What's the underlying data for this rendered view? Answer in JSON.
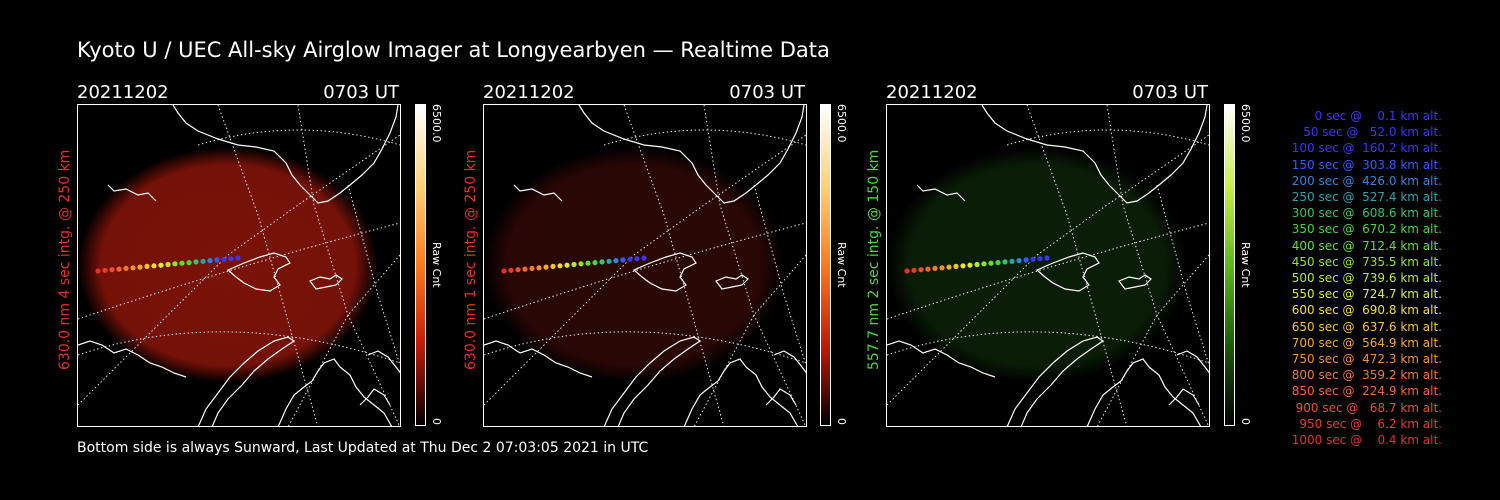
{
  "title": "Kyoto U / UEC All-sky Airglow Imager at Longyearbyen — Realtime Data",
  "footer": "Bottom side is always Sunward, Last Updated at Thu Dec  2 07:03:05 2021 in UTC",
  "panels": [
    {
      "date": "20211202",
      "time": "0703 UT",
      "label": "630.0 nm 4 sec intg. @ 250 km",
      "label_color": "#e8301c",
      "cbar_max": "6500.0",
      "cbar_min": "0",
      "cbar_unit": "Raw Cnt",
      "colormap": "red",
      "glow": "#7a1208"
    },
    {
      "date": "20211202",
      "time": "0703 UT",
      "label": "630.0 nm 1 sec intg. @ 250 km",
      "label_color": "#e8301c",
      "cbar_max": "6500.0",
      "cbar_min": "0",
      "cbar_unit": "Raw Cnt",
      "colormap": "red",
      "glow": "#2a0705"
    },
    {
      "date": "20211202",
      "time": "0703 UT",
      "label": "557.7 nm 2 sec intg. @ 150 km",
      "label_color": "#4fd83a",
      "cbar_max": "6500.0",
      "cbar_min": "0",
      "cbar_unit": "Raw Cnt",
      "colormap": "green",
      "glow": "#0a1e07"
    }
  ],
  "colors": {
    "red_colormap": [
      "#ffffff",
      "#ffd27a",
      "#ff7a1c",
      "#c21a08",
      "#000000"
    ],
    "green_colormap": [
      "#ffffff",
      "#c8ef4a",
      "#5fb819",
      "#1b5a0a",
      "#000000"
    ]
  },
  "legend": [
    {
      "text": "   0 sec @    0.1 km alt.",
      "color": "#3a34ff"
    },
    {
      "text": "  50 sec @   52.0 km alt.",
      "color": "#3a34ff"
    },
    {
      "text": " 100 sec @  160.2 km alt.",
      "color": "#3a34ff"
    },
    {
      "text": " 150 sec @  303.8 km alt.",
      "color": "#2f5cff"
    },
    {
      "text": " 200 sec @  426.0 km alt.",
      "color": "#2a86e0"
    },
    {
      "text": " 250 sec @  527.4 km alt.",
      "color": "#23a6b0"
    },
    {
      "text": " 300 sec @  608.6 km alt.",
      "color": "#2fc86a"
    },
    {
      "text": " 350 sec @  670.2 km alt.",
      "color": "#44d83a"
    },
    {
      "text": " 400 sec @  712.4 km alt.",
      "color": "#62e02c"
    },
    {
      "text": " 450 sec @  735.5 km alt.",
      "color": "#8ee62a"
    },
    {
      "text": " 500 sec @  739.6 km alt.",
      "color": "#b8ec2a"
    },
    {
      "text": " 550 sec @  724.7 km alt.",
      "color": "#e0ee2a"
    },
    {
      "text": " 600 sec @  690.8 km alt.",
      "color": "#f4e02a"
    },
    {
      "text": " 650 sec @  637.6 km alt.",
      "color": "#f6c42a"
    },
    {
      "text": " 700 sec @  564.9 km alt.",
      "color": "#f6a82a"
    },
    {
      "text": " 750 sec @  472.3 km alt.",
      "color": "#f6902a"
    },
    {
      "text": " 800 sec @  359.2 km alt.",
      "color": "#f47a2a"
    },
    {
      "text": " 850 sec @  224.9 km alt.",
      "color": "#f0662a"
    },
    {
      "text": " 900 sec @   68.7 km alt.",
      "color": "#ec502a"
    },
    {
      "text": " 950 sec @    6.2 km alt.",
      "color": "#e83c2a"
    },
    {
      "text": "1000 sec @    0.4 km alt.",
      "color": "#e4302a"
    }
  ]
}
